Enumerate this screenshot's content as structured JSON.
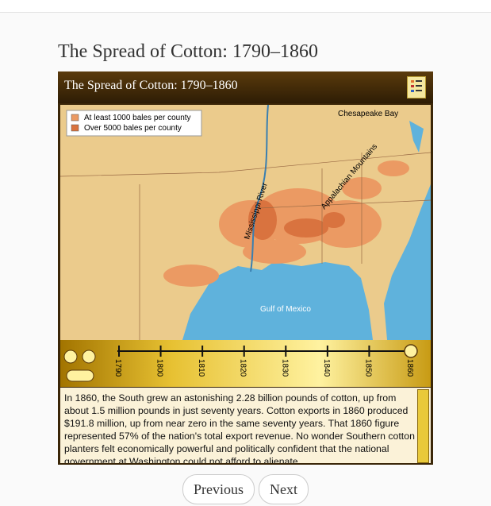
{
  "page_title": "The Spread of Cotton: 1790–1860",
  "widget": {
    "title": "The Spread of Cotton: 1790–1860",
    "legend": [
      "At least 1000 bales per county",
      "Over 5000 bales per county"
    ],
    "map_labels": {
      "chesapeake": "Chesapeake Bay",
      "mississippi": "Mississippi River",
      "appalachian": "Appalachian Mountains",
      "gulf": "Gulf of Mexico"
    },
    "timeline": [
      "1790",
      "1800",
      "1810",
      "1820",
      "1830",
      "1840",
      "1850",
      "1860"
    ],
    "text": "In 1860, the South grew an astonishing 2.28 billion pounds of cotton, up from about 1.5 million pounds in just seventy years. Cotton exports in 1860 produced $191.8 million, up from near zero in the same seventy years. That 1860 figure represented 57% of the nation's total export revenue. No wonder Southern cotton planters felt economically powerful and politically confident that the national government at Washington could not afford to alienate"
  },
  "nav": {
    "previous": "Previous",
    "next": "Next"
  }
}
